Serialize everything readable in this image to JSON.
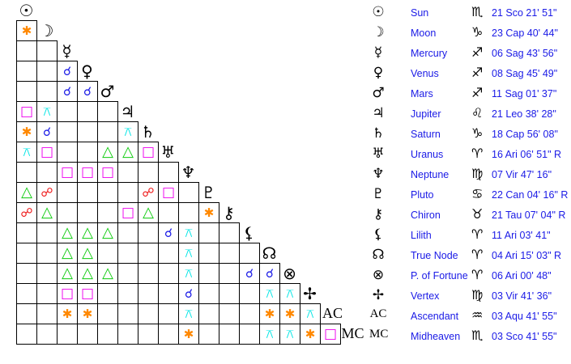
{
  "bodies": [
    {
      "name": "Sun",
      "glyph": "☉",
      "sign_glyph": "♏",
      "position": "21 Sco 21' 51\""
    },
    {
      "name": "Moon",
      "glyph": "☽",
      "sign_glyph": "♑",
      "position": "23 Cap 40' 44\""
    },
    {
      "name": "Mercury",
      "glyph": "☿",
      "sign_glyph": "♐",
      "position": "06 Sag 43' 56\""
    },
    {
      "name": "Venus",
      "glyph": "♀",
      "sign_glyph": "♐",
      "position": "08 Sag 45' 49\""
    },
    {
      "name": "Mars",
      "glyph": "♂",
      "sign_glyph": "♐",
      "position": "11 Sag 01' 37\""
    },
    {
      "name": "Jupiter",
      "glyph": "♃",
      "sign_glyph": "♌",
      "position": "21 Leo 38' 28\""
    },
    {
      "name": "Saturn",
      "glyph": "♄",
      "sign_glyph": "♑",
      "position": "18 Cap 56' 08\""
    },
    {
      "name": "Uranus",
      "glyph": "♅",
      "sign_glyph": "♈",
      "position": "16 Ari 06' 51\" R"
    },
    {
      "name": "Neptune",
      "glyph": "♆",
      "sign_glyph": "♍",
      "position": "07 Vir 47' 16\""
    },
    {
      "name": "Pluto",
      "glyph": "♇",
      "sign_glyph": "♋",
      "position": "22 Can 04' 16\" R"
    },
    {
      "name": "Chiron",
      "glyph": "⚷",
      "sign_glyph": "♉",
      "position": "21 Tau 07' 04\" R"
    },
    {
      "name": "Lilith",
      "glyph": "⚸",
      "sign_glyph": "♈",
      "position": "11 Ari 03' 41\""
    },
    {
      "name": "True Node",
      "glyph": "☊",
      "sign_glyph": "♈",
      "position": "04 Ari 15' 03\" R"
    },
    {
      "name": "P. of Fortune",
      "glyph": "⊗",
      "sign_glyph": "♈",
      "position": "06 Ari 00' 48\""
    },
    {
      "name": "Vertex",
      "glyph": "✢",
      "sign_glyph": "♍",
      "position": "03 Vir 41' 36\""
    },
    {
      "name": "Ascendant",
      "glyph": "AC",
      "sign_glyph": "♒",
      "position": "03 Aqu 41' 55\""
    },
    {
      "name": "Midheaven",
      "glyph": "MC",
      "sign_glyph": "♏",
      "position": "03 Sco 41' 55\""
    }
  ],
  "aspect_types": {
    "conjunction": {
      "glyph": "☌",
      "color": "#1a1ae6"
    },
    "opposition": {
      "glyph": "☍",
      "color": "#ee1111"
    },
    "square": {
      "glyph": "□",
      "color": "#ee00ee"
    },
    "trine": {
      "glyph": "△",
      "color": "#11cc11"
    },
    "sextile": {
      "glyph": "✱",
      "color": "#ff8800"
    },
    "quincunx": {
      "glyph": "⚻",
      "color": "#00e5e5"
    }
  },
  "aspects": [
    {
      "a": "Moon",
      "b": "Sun",
      "type": "sextile"
    },
    {
      "a": "Venus",
      "b": "Mercury",
      "type": "conjunction"
    },
    {
      "a": "Mars",
      "b": "Mercury",
      "type": "conjunction"
    },
    {
      "a": "Mars",
      "b": "Venus",
      "type": "conjunction"
    },
    {
      "a": "Jupiter",
      "b": "Sun",
      "type": "square"
    },
    {
      "a": "Jupiter",
      "b": "Moon",
      "type": "quincunx"
    },
    {
      "a": "Saturn",
      "b": "Sun",
      "type": "sextile"
    },
    {
      "a": "Saturn",
      "b": "Moon",
      "type": "conjunction"
    },
    {
      "a": "Saturn",
      "b": "Jupiter",
      "type": "quincunx"
    },
    {
      "a": "Uranus",
      "b": "Sun",
      "type": "quincunx"
    },
    {
      "a": "Uranus",
      "b": "Moon",
      "type": "square"
    },
    {
      "a": "Uranus",
      "b": "Mars",
      "type": "trine"
    },
    {
      "a": "Uranus",
      "b": "Jupiter",
      "type": "trine"
    },
    {
      "a": "Uranus",
      "b": "Saturn",
      "type": "square"
    },
    {
      "a": "Neptune",
      "b": "Mercury",
      "type": "square"
    },
    {
      "a": "Neptune",
      "b": "Venus",
      "type": "square"
    },
    {
      "a": "Neptune",
      "b": "Mars",
      "type": "square"
    },
    {
      "a": "Pluto",
      "b": "Sun",
      "type": "trine"
    },
    {
      "a": "Pluto",
      "b": "Moon",
      "type": "opposition"
    },
    {
      "a": "Pluto",
      "b": "Saturn",
      "type": "opposition"
    },
    {
      "a": "Pluto",
      "b": "Uranus",
      "type": "square"
    },
    {
      "a": "Chiron",
      "b": "Sun",
      "type": "opposition"
    },
    {
      "a": "Chiron",
      "b": "Moon",
      "type": "trine"
    },
    {
      "a": "Chiron",
      "b": "Jupiter",
      "type": "square"
    },
    {
      "a": "Chiron",
      "b": "Saturn",
      "type": "trine"
    },
    {
      "a": "Chiron",
      "b": "Pluto",
      "type": "sextile"
    },
    {
      "a": "Lilith",
      "b": "Mercury",
      "type": "trine"
    },
    {
      "a": "Lilith",
      "b": "Venus",
      "type": "trine"
    },
    {
      "a": "Lilith",
      "b": "Mars",
      "type": "trine"
    },
    {
      "a": "Lilith",
      "b": "Uranus",
      "type": "conjunction"
    },
    {
      "a": "Lilith",
      "b": "Neptune",
      "type": "quincunx"
    },
    {
      "a": "True Node",
      "b": "Mercury",
      "type": "trine"
    },
    {
      "a": "True Node",
      "b": "Venus",
      "type": "trine"
    },
    {
      "a": "True Node",
      "b": "Neptune",
      "type": "quincunx"
    },
    {
      "a": "P. of Fortune",
      "b": "Mercury",
      "type": "trine"
    },
    {
      "a": "P. of Fortune",
      "b": "Venus",
      "type": "trine"
    },
    {
      "a": "P. of Fortune",
      "b": "Mars",
      "type": "trine"
    },
    {
      "a": "P. of Fortune",
      "b": "Neptune",
      "type": "quincunx"
    },
    {
      "a": "P. of Fortune",
      "b": "Lilith",
      "type": "conjunction"
    },
    {
      "a": "P. of Fortune",
      "b": "True Node",
      "type": "conjunction"
    },
    {
      "a": "Vertex",
      "b": "Mercury",
      "type": "square"
    },
    {
      "a": "Vertex",
      "b": "Venus",
      "type": "square"
    },
    {
      "a": "Vertex",
      "b": "Neptune",
      "type": "conjunction"
    },
    {
      "a": "Vertex",
      "b": "True Node",
      "type": "quincunx"
    },
    {
      "a": "Vertex",
      "b": "P. of Fortune",
      "type": "quincunx"
    },
    {
      "a": "Ascendant",
      "b": "Mercury",
      "type": "sextile"
    },
    {
      "a": "Ascendant",
      "b": "Venus",
      "type": "sextile"
    },
    {
      "a": "Ascendant",
      "b": "Neptune",
      "type": "quincunx"
    },
    {
      "a": "Ascendant",
      "b": "True Node",
      "type": "sextile"
    },
    {
      "a": "Ascendant",
      "b": "P. of Fortune",
      "type": "sextile"
    },
    {
      "a": "Ascendant",
      "b": "Vertex",
      "type": "quincunx"
    },
    {
      "a": "Midheaven",
      "b": "Neptune",
      "type": "sextile"
    },
    {
      "a": "Midheaven",
      "b": "True Node",
      "type": "quincunx"
    },
    {
      "a": "Midheaven",
      "b": "P. of Fortune",
      "type": "quincunx"
    },
    {
      "a": "Midheaven",
      "b": "Vertex",
      "type": "sextile"
    },
    {
      "a": "Midheaven",
      "b": "Ascendant",
      "type": "square"
    }
  ]
}
